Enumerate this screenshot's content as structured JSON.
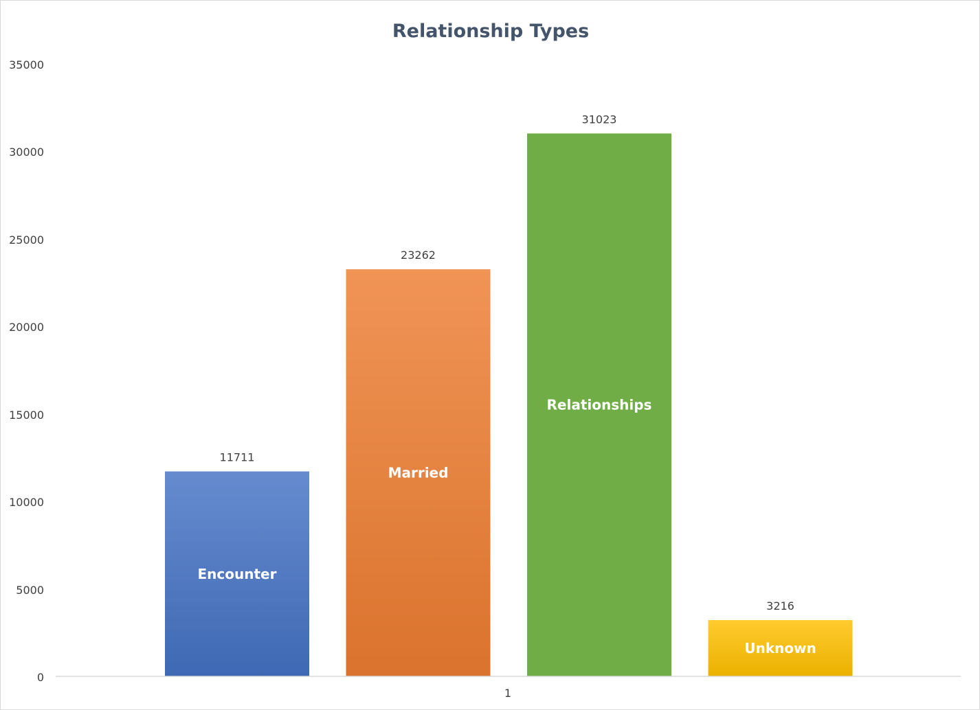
{
  "chart_data": {
    "type": "bar",
    "title": "Relationship Types",
    "categories": [
      "1"
    ],
    "series": [
      {
        "name": "Encounter",
        "values": [
          11711
        ],
        "color": "#4472c4"
      },
      {
        "name": "Married",
        "values": [
          23262
        ],
        "color": "#ed7d31"
      },
      {
        "name": "Relationships",
        "values": [
          31023
        ],
        "color": "#70ad47"
      },
      {
        "name": "Unknown",
        "values": [
          3216
        ],
        "color": "#ffc000"
      }
    ],
    "yticks": [
      "0",
      "5000",
      "10000",
      "15000",
      "20000",
      "25000",
      "30000",
      "35000"
    ],
    "ylim": [
      0,
      35000
    ],
    "xlabel": "",
    "ylabel": "",
    "grid": false,
    "legend": "none",
    "data_labels": [
      "11711",
      "23262",
      "31023",
      "3216"
    ]
  }
}
